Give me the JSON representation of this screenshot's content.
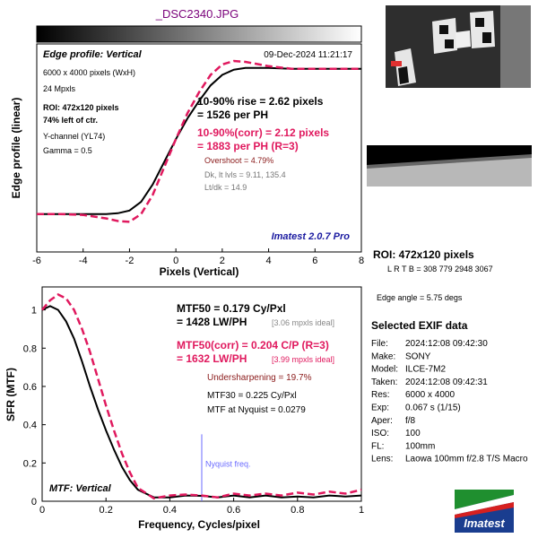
{
  "file_title": "_DSC2340.JPG",
  "colors": {
    "title": "#7a007a",
    "measured": "#000000",
    "corrected": "#e0195e",
    "nyquist": "#6a6aff",
    "logo_blue": "#1a3d8f",
    "logo_green": "#1f8f2f",
    "logo_red": "#d62020"
  },
  "edge_panel": {
    "header": "Edge profile: Vertical",
    "timestamp": "09-Dec-2024 11:21:17",
    "size": "6000 x 4000 pixels (WxH)",
    "mpxls": "24 Mpxls",
    "roi": "ROI: 472x120 pixels",
    "roi_pos": "74% left of ctr.",
    "channel": "Y-channel  (YL74)",
    "gamma": "Gamma = 0.5",
    "rise_1": "10-90% rise = 2.62 pixels",
    "rise_2": "= 1526 per PH",
    "corr_1": "10-90%(corr) = 2.12 pixels",
    "corr_2": "= 1883 per PH  (R=3)",
    "overshoot": "Overshoot = 4.79%",
    "dk": "Dk, lt lvls = 9.11, 135.4",
    "ltdk": "Lt/dk = 14.9",
    "version": "Imatest 2.0.7 Pro"
  },
  "mtf_panel": {
    "header": "MTF: Vertical",
    "mtf50_1": "MTF50 = 0.179 Cy/Pxl",
    "mtf50_2": "= 1428 LW/PH",
    "mtf50_ideal": "[3.06 mpxls ideal]",
    "corr_1": "MTF50(corr) = 0.204  C/P  (R=3)",
    "corr_2": "= 1632 LW/PH",
    "corr_ideal": "[3.99 mpxls ideal]",
    "undersharp": "Undersharpening = 19.7%",
    "mtf30": "MTF30 = 0.225 Cy/Pxl",
    "nyq": "MTF at Nyquist = 0.0279",
    "nyquist_label": "Nyquist freq."
  },
  "right_panel": {
    "roi": "ROI: 472x120 pixels",
    "lrtb": "L R  T B = 308 779  2948 3067",
    "edge_angle": "Edge angle = 5.75 degs",
    "exif_title": "Selected EXIF data",
    "exif": [
      {
        "k": "File:",
        "v": "2024:12:08 09:42:30"
      },
      {
        "k": "Make:",
        "v": "SONY"
      },
      {
        "k": "Model:",
        "v": "ILCE-7M2"
      },
      {
        "k": "Taken:",
        "v": "2024:12:08 09:42:31"
      },
      {
        "k": "Res:",
        "v": "6000 x 4000"
      },
      {
        "k": "Exp:",
        "v": "0.067 s  (1/15)"
      },
      {
        "k": "Aper:",
        "v": "f/8"
      },
      {
        "k": "ISO:",
        "v": "100"
      },
      {
        "k": "FL:",
        "v": "100mm"
      },
      {
        "k": "Lens:",
        "v": "Laowa 100mm f/2.8 T/S Macro"
      }
    ],
    "logo_text": "Imatest"
  },
  "chart_data": [
    {
      "type": "line",
      "ylabel": "Edge profile (linear)",
      "xlabel": "Pixels (Vertical)",
      "xlim": [
        -6,
        8
      ],
      "ylim": [
        0,
        1
      ],
      "grid": false,
      "x_ticks": [
        -6,
        -4,
        -2,
        0,
        2,
        4,
        6,
        8
      ],
      "x": [
        -6,
        -5,
        -4,
        -3,
        -2.5,
        -2,
        -1.5,
        -1,
        -0.5,
        0,
        0.5,
        1,
        1.5,
        2,
        2.5,
        3,
        4,
        5,
        6,
        7,
        8
      ],
      "series": [
        {
          "values": [
            0.12,
            0.12,
            0.12,
            0.12,
            0.125,
            0.14,
            0.19,
            0.29,
            0.42,
            0.55,
            0.67,
            0.77,
            0.86,
            0.92,
            0.95,
            0.96,
            0.96,
            0.955,
            0.955,
            0.955,
            0.955
          ]
        },
        {
          "values": [
            0.12,
            0.12,
            0.115,
            0.095,
            0.08,
            0.075,
            0.12,
            0.23,
            0.39,
            0.55,
            0.7,
            0.82,
            0.92,
            0.98,
            1.0,
            0.995,
            0.97,
            0.955,
            0.955,
            0.955,
            0.955
          ]
        }
      ]
    },
    {
      "type": "line",
      "ylabel": "SFR (MTF)",
      "xlabel": "Frequency, Cycles/pixel",
      "xlim": [
        0,
        1
      ],
      "ylim": [
        0,
        1.12
      ],
      "grid": false,
      "x_ticks": [
        0,
        0.2,
        0.4,
        0.6,
        0.8,
        1
      ],
      "y_ticks": [
        0,
        0.2,
        0.4,
        0.6,
        0.8,
        1
      ],
      "nyquist": 0.5,
      "x": [
        0,
        0.025,
        0.05,
        0.075,
        0.1,
        0.125,
        0.15,
        0.175,
        0.2,
        0.225,
        0.25,
        0.275,
        0.3,
        0.35,
        0.4,
        0.45,
        0.5,
        0.55,
        0.6,
        0.65,
        0.7,
        0.75,
        0.8,
        0.85,
        0.9,
        0.95,
        1.0
      ],
      "series": [
        {
          "values": [
            1.0,
            1.02,
            1.0,
            0.94,
            0.85,
            0.73,
            0.6,
            0.48,
            0.37,
            0.27,
            0.18,
            0.11,
            0.06,
            0.02,
            0.02,
            0.03,
            0.028,
            0.02,
            0.03,
            0.02,
            0.03,
            0.02,
            0.025,
            0.02,
            0.03,
            0.025,
            0.03
          ]
        },
        {
          "values": [
            1.0,
            1.05,
            1.08,
            1.06,
            1.0,
            0.9,
            0.78,
            0.64,
            0.5,
            0.37,
            0.25,
            0.15,
            0.07,
            0.015,
            0.03,
            0.035,
            0.03,
            0.02,
            0.04,
            0.03,
            0.04,
            0.03,
            0.045,
            0.035,
            0.05,
            0.04,
            0.06
          ]
        }
      ]
    }
  ]
}
